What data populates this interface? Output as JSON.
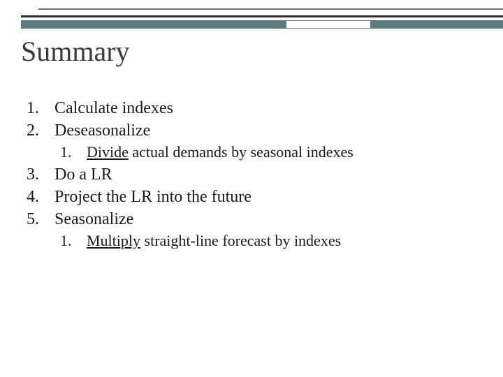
{
  "title": "Summary",
  "colors": {
    "accent": "#5d7b7b",
    "dark_line": "#2c2c2c",
    "text": "#1a1a1a",
    "title_text": "#3a3a3a",
    "background": "#ffffff"
  },
  "typography": {
    "title_fontsize": 40,
    "body_fontsize": 24,
    "sub_fontsize": 22,
    "family": "Georgia, serif"
  },
  "items": [
    {
      "level": 1,
      "num": "1.",
      "text": "Calculate indexes"
    },
    {
      "level": 1,
      "num": "2.",
      "text": "Deseasonalize"
    },
    {
      "level": 2,
      "num": "1.",
      "underline": "Divide",
      "rest": " actual demands by seasonal indexes"
    },
    {
      "level": 1,
      "num": "3.",
      "text": "Do a LR"
    },
    {
      "level": 1,
      "num": "4.",
      "text": "Project the LR into the future"
    },
    {
      "level": 1,
      "num": "5.",
      "text": "Seasonalize"
    },
    {
      "level": 2,
      "num": "1.",
      "underline": "Multiply",
      "rest": " straight-line forecast by indexes"
    }
  ]
}
